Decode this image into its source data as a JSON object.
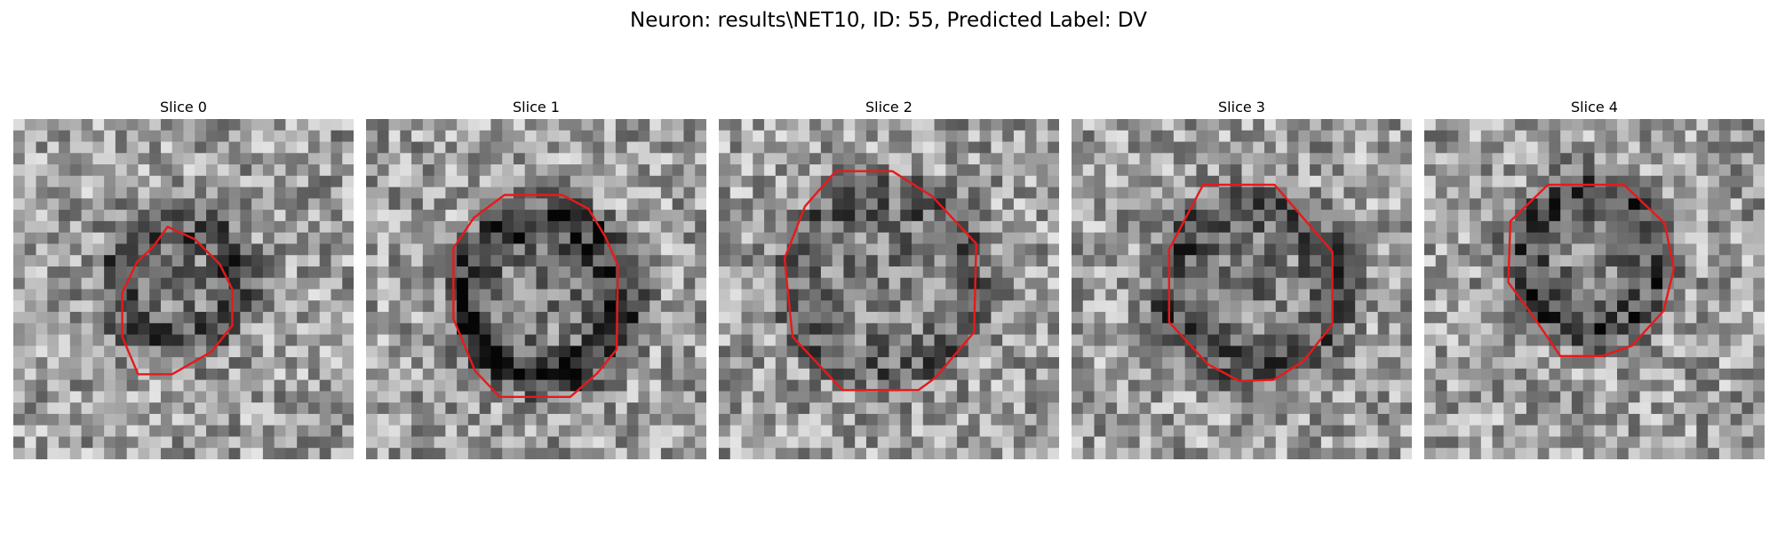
{
  "figure": {
    "title": "Neuron: results\\NET10, ID: 55, Predicted Label: DV"
  },
  "colors": {
    "background": "#ffffff",
    "contour": "#e8191a",
    "image_colormap": "grayscale"
  },
  "slices": [
    {
      "title": "Slice 0"
    },
    {
      "title": "Slice 1"
    },
    {
      "title": "Slice 2"
    },
    {
      "title": "Slice 3"
    },
    {
      "title": "Slice 4"
    }
  ]
}
